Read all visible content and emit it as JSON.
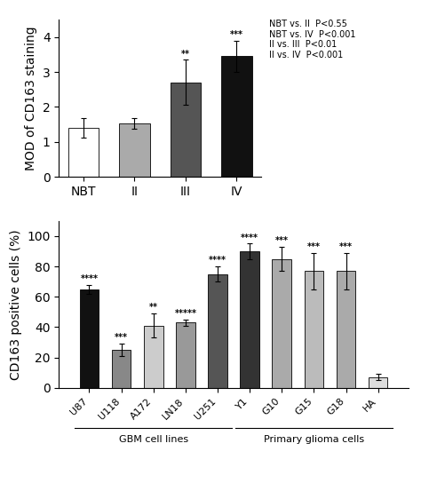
{
  "chart_data": [
    {
      "type": "bar",
      "categories": [
        "NBT",
        "II",
        "III",
        "IV"
      ],
      "values": [
        1.4,
        1.52,
        2.7,
        3.45
      ],
      "errors": [
        0.28,
        0.15,
        0.65,
        0.45
      ],
      "colors": [
        "#ffffff",
        "#aaaaaa",
        "#555555",
        "#111111"
      ],
      "y_label": "MOD of CD163 staining",
      "ylim": [
        0,
        4.5
      ],
      "yticks": [
        0,
        1,
        2,
        3,
        4
      ],
      "stars": [
        null,
        null,
        "**",
        "***"
      ],
      "notes": [
        "NBT vs. II  P<0.55",
        "NBT vs. IV  P<0.001",
        "II vs. III  P<0.01",
        "II vs. IV  P<0.001"
      ]
    },
    {
      "type": "bar",
      "categories": [
        "U87",
        "U118",
        "A172",
        "LN18",
        "U251",
        "Y1",
        "G10",
        "G15",
        "G18",
        "HA"
      ],
      "values": [
        65,
        25,
        41,
        43,
        75,
        90,
        85,
        77,
        77,
        7
      ],
      "errors": [
        3,
        4,
        8,
        2,
        5,
        5,
        8,
        12,
        12,
        2
      ],
      "colors": [
        "#111111",
        "#888888",
        "#cccccc",
        "#999999",
        "#555555",
        "#333333",
        "#aaaaaa",
        "#bbbbbb",
        "#aaaaaa",
        "#dddddd"
      ],
      "y_label": "CD163 positive cells (%)",
      "ylim": [
        0,
        110
      ],
      "yticks": [
        0,
        20,
        40,
        60,
        80,
        100
      ],
      "stars": [
        "****",
        "***",
        "**",
        "*****",
        "****",
        "****",
        "***",
        "***",
        "***",
        null
      ],
      "groups": [
        {
          "label": "GBM cell lines",
          "categories": [
            "U87",
            "U118",
            "A172",
            "LN18",
            "U251"
          ]
        },
        {
          "label": "Primary glioma cells",
          "categories": [
            "Y1",
            "G10",
            "G15",
            "G18",
            "HA"
          ]
        }
      ]
    }
  ]
}
